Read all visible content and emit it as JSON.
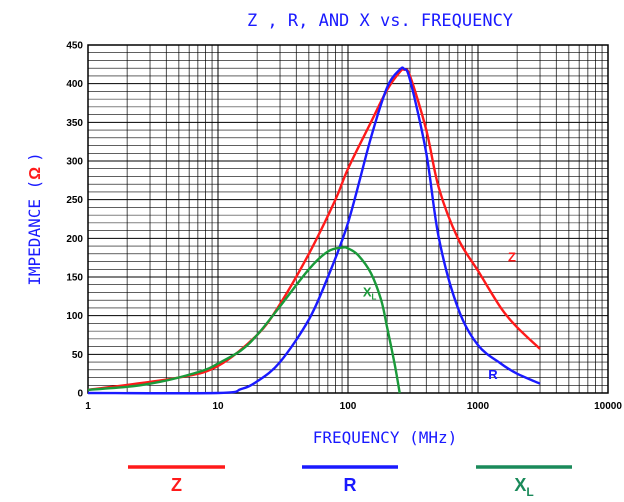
{
  "chart_data": {
    "type": "line",
    "title": "Z , R, AND X vs. FREQUENCY",
    "xlabel": "FREQUENCY (MHz)",
    "ylabel_prefix": "IMPEDANCE (",
    "ylabel_symbol": "Ω",
    "ylabel_suffix": ")",
    "xscale": "log",
    "xlim": [
      1,
      10000
    ],
    "ylim": [
      0,
      450
    ],
    "grid": true,
    "x_ticks": [
      "1",
      "10",
      "100",
      "1000",
      "10000"
    ],
    "y_ticks": [
      "0",
      "50",
      "100",
      "150",
      "200",
      "250",
      "300",
      "350",
      "400",
      "450"
    ],
    "series": [
      {
        "name": "Z",
        "color": "#ff1a1a",
        "x": [
          1,
          5,
          10,
          20,
          30,
          50,
          80,
          100,
          150,
          200,
          250,
          270,
          300,
          400,
          500,
          700,
          1000,
          1500,
          2000,
          3000
        ],
        "y": [
          4,
          20,
          35,
          75,
          115,
          180,
          250,
          290,
          350,
          392,
          415,
          418,
          410,
          340,
          265,
          200,
          158,
          110,
          85,
          57
        ]
      },
      {
        "name": "R",
        "color": "#1a1aff",
        "x": [
          1,
          10,
          15,
          20,
          30,
          50,
          70,
          100,
          150,
          200,
          250,
          270,
          300,
          400,
          500,
          700,
          1000,
          1500,
          2000,
          3000
        ],
        "y": [
          0,
          0,
          5,
          15,
          40,
          95,
          150,
          220,
          330,
          395,
          418,
          419,
          405,
          310,
          200,
          110,
          62,
          38,
          25,
          12
        ]
      },
      {
        "name": "X",
        "subscript": "L",
        "color": "#1a9a3a",
        "x": [
          1,
          2,
          3,
          5,
          8,
          10,
          15,
          20,
          30,
          50,
          70,
          90,
          100,
          120,
          150,
          180,
          200,
          230,
          250
        ],
        "y": [
          4,
          8,
          12,
          20,
          30,
          38,
          55,
          75,
          112,
          160,
          183,
          188,
          187,
          178,
          155,
          120,
          85,
          35,
          0
        ]
      }
    ],
    "curve_labels": [
      {
        "text": "Z",
        "series": 0,
        "x": 1700,
        "y": 170
      },
      {
        "text": "R",
        "series": 1,
        "x": 1200,
        "y": 18
      },
      {
        "text": "X",
        "sub": "L",
        "series": 2,
        "x": 130,
        "y": 125
      }
    ]
  },
  "legend": [
    {
      "text": "Z",
      "sub": "",
      "color": "#ff1a1a"
    },
    {
      "text": "R",
      "sub": "",
      "color": "#1a1aff"
    },
    {
      "text": "X",
      "sub": "L",
      "color": "#1a8a5a"
    }
  ]
}
